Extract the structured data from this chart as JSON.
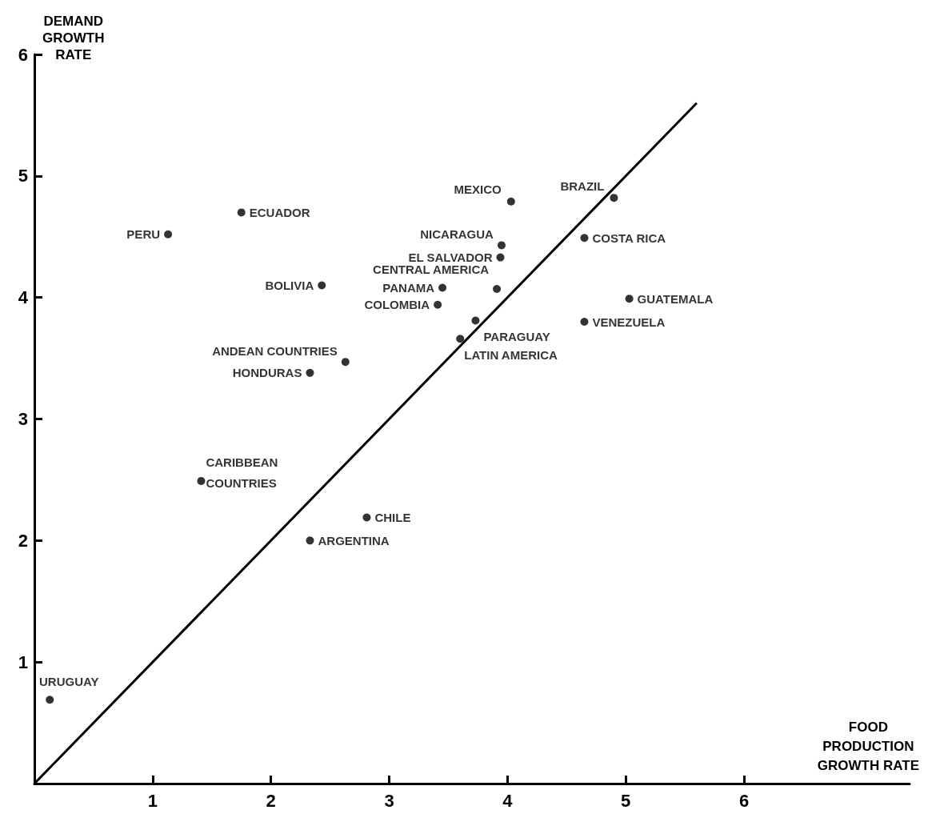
{
  "chart_data": {
    "type": "scatter",
    "xlabel": "FOOD PRODUCTION GROWTH RATE",
    "ylabel": "DEMAND GROWTH RATE",
    "xlim": [
      0,
      7.4
    ],
    "ylim": [
      0,
      6
    ],
    "xticks": [
      {
        "value": 0,
        "label": null
      },
      1,
      2,
      3,
      4,
      5,
      6
    ],
    "yticks": [
      {
        "value": 0,
        "label": null
      },
      1,
      2,
      3,
      4,
      5,
      6
    ],
    "grid": false,
    "series": [
      {
        "marker": "circle",
        "color": "#000000",
        "x": [
          1.13,
          1.75,
          2.43,
          4.03,
          4.9,
          3.95,
          3.94,
          4.65,
          3.91,
          3.45,
          3.41,
          5.03,
          4.65,
          3.73,
          3.6,
          2.63,
          2.33,
          1.41,
          2.81,
          2.33,
          0.13
        ],
        "values": [
          4.52,
          4.7,
          4.1,
          4.79,
          4.82,
          4.43,
          4.33,
          4.49,
          4.07,
          4.08,
          3.94,
          3.99,
          3.8,
          3.81,
          3.66,
          3.47,
          3.38,
          2.49,
          2.19,
          2.0,
          0.69
        ]
      },
      {
        "type": "line",
        "color": "#000000",
        "x": [
          0,
          5.6
        ],
        "values": [
          0,
          5.6
        ]
      }
    ],
    "annotations": [
      {
        "text": "PERU",
        "x": 1.13,
        "y": 4.52
      },
      {
        "text": "ECUADOR",
        "x": 1.75,
        "y": 4.7
      },
      {
        "text": "BOLIVIA",
        "x": 2.43,
        "y": 4.1
      },
      {
        "text": "MEXICO",
        "x": 4.03,
        "y": 4.79
      },
      {
        "text": "BRAZIL",
        "x": 4.9,
        "y": 4.82
      },
      {
        "text": "NICARAGUA",
        "x": 3.95,
        "y": 4.43
      },
      {
        "text": "EL SALVADOR",
        "x": 3.94,
        "y": 4.33
      },
      {
        "text": "COSTA RICA",
        "x": 4.65,
        "y": 4.49
      },
      {
        "text": "CENTRAL AMERICA",
        "x": 3.91,
        "y": 4.07
      },
      {
        "text": "PANAMA",
        "x": 3.45,
        "y": 4.08
      },
      {
        "text": "COLOMBIA",
        "x": 3.41,
        "y": 3.94
      },
      {
        "text": "GUATEMALA",
        "x": 5.03,
        "y": 3.99
      },
      {
        "text": "VENEZUELA",
        "x": 4.65,
        "y": 3.8
      },
      {
        "text": "PARAGUAY",
        "x": 3.73,
        "y": 3.81
      },
      {
        "text": "LATIN AMERICA",
        "x": 3.6,
        "y": 3.66
      },
      {
        "text": "ANDEAN COUNTRIES",
        "x": 2.63,
        "y": 3.47
      },
      {
        "text": "HONDURAS",
        "x": 2.33,
        "y": 3.38
      },
      {
        "text": "CARIBBEAN COUNTRIES",
        "x": 1.41,
        "y": 2.49
      },
      {
        "text": "CHILE",
        "x": 2.81,
        "y": 2.19
      },
      {
        "text": "ARGENTINA",
        "x": 2.33,
        "y": 2.0
      },
      {
        "text": "URUGUAY",
        "x": 0.13,
        "y": 0.69
      }
    ]
  }
}
